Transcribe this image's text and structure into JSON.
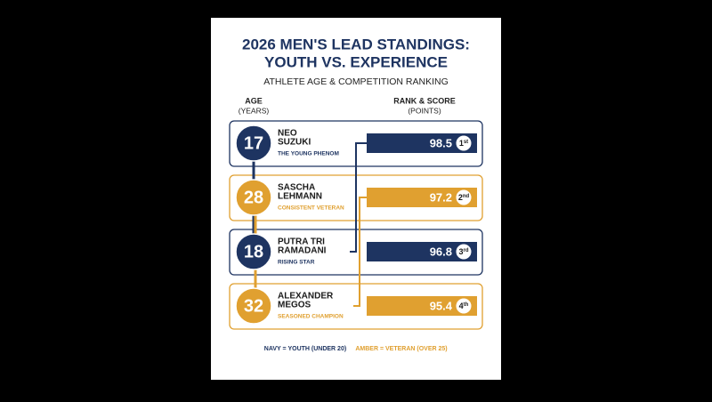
{
  "header": {
    "title_lines": [
      "2026 MEN'S LEAD STANDINGS:",
      "YOUTH VS. EXPERIENCE"
    ],
    "subtitle": "ATHLETE AGE & COMPETITION RANKING"
  },
  "columns": {
    "age": [
      "AGE",
      "(YEARS)"
    ],
    "score": [
      "RANK & SCORE",
      "(POINTS)"
    ]
  },
  "rows": [
    {
      "age": "17",
      "name_lines": [
        "NEO",
        "SUZUKI"
      ],
      "tagline": "THE YOUNG PHENOM",
      "score": "98.5",
      "rank": "1",
      "rank_suffix": "st",
      "group": "youth"
    },
    {
      "age": "28",
      "name_lines": [
        "SASCHA",
        "LEHMANN"
      ],
      "tagline": "CONSISTENT VETERAN",
      "score": "97.2",
      "rank": "2",
      "rank_suffix": "nd",
      "group": "veteran"
    },
    {
      "age": "18",
      "name_lines": [
        "PUTRA TRI",
        "RAMADANI"
      ],
      "tagline": "RISING STAR",
      "score": "96.8",
      "rank": "3",
      "rank_suffix": "rd",
      "group": "youth"
    },
    {
      "age": "32",
      "name_lines": [
        "ALEXANDER",
        "MEGOS"
      ],
      "tagline": "SEASONED CHAMPION",
      "score": "95.4",
      "rank": "4",
      "rank_suffix": "th",
      "group": "veteran"
    }
  ],
  "legend": {
    "youth": "NAVY = YOUTH (UNDER 20)",
    "veteran": "AMBER = VETERAN (OVER 25)"
  }
}
